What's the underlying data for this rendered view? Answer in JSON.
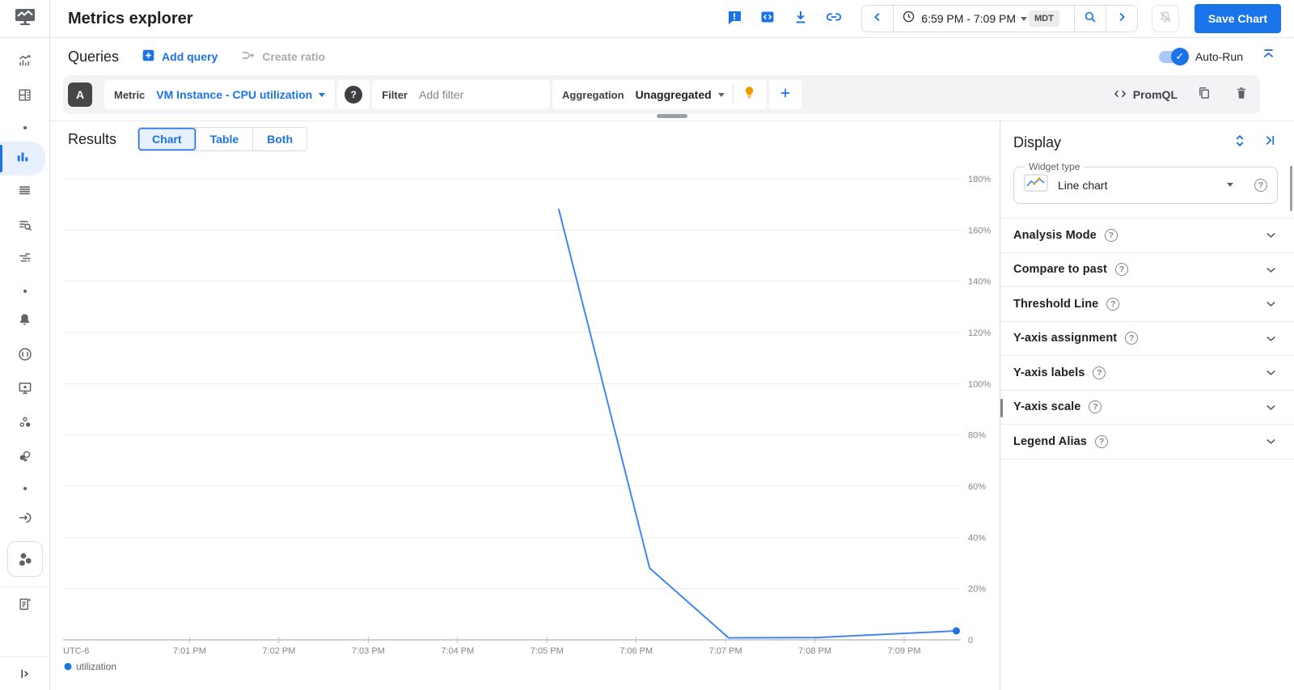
{
  "header": {
    "title": "Metrics explorer",
    "time_range": "6:59 PM - 7:09 PM",
    "timezone_badge": "MDT",
    "save_button": "Save Chart",
    "accent_color": "#1a73e8"
  },
  "queries": {
    "title": "Queries",
    "add_query": "Add query",
    "create_ratio": "Create ratio",
    "auto_run_label": "Auto-Run",
    "auto_run_on": true,
    "query_letter": "A",
    "metric_label": "Metric",
    "metric_value": "VM Instance - CPU utilization",
    "filter_label": "Filter",
    "filter_placeholder": "Add filter",
    "aggregation_label": "Aggregation",
    "aggregation_value": "Unaggregated",
    "promql_label": "PromQL"
  },
  "results": {
    "title": "Results",
    "tabs": [
      {
        "label": "Chart",
        "active": true
      },
      {
        "label": "Table",
        "active": false
      },
      {
        "label": "Both",
        "active": false
      }
    ]
  },
  "display": {
    "title": "Display",
    "widget_type_label": "Widget type",
    "widget_type_value": "Line chart",
    "sections": [
      "Analysis Mode",
      "Compare to past",
      "Threshold Line",
      "Y-axis assignment",
      "Y-axis labels",
      "Y-axis scale",
      "Legend Alias"
    ]
  },
  "icons": {
    "help_glyph": "?",
    "check_glyph": "✓"
  },
  "chart_data": {
    "type": "line",
    "title": "",
    "timezone_label": "UTC-6",
    "grid": true,
    "legend_position": "bottom-left",
    "x_axis": {
      "domain_seconds_after_7pm": [
        -25,
        578
      ],
      "ticks": [
        {
          "label": "7:01 PM",
          "seconds_after_7pm": 60
        },
        {
          "label": "7:02 PM",
          "seconds_after_7pm": 120
        },
        {
          "label": "7:03 PM",
          "seconds_after_7pm": 180
        },
        {
          "label": "7:04 PM",
          "seconds_after_7pm": 240
        },
        {
          "label": "7:05 PM",
          "seconds_after_7pm": 300
        },
        {
          "label": "7:06 PM",
          "seconds_after_7pm": 360
        },
        {
          "label": "7:07 PM",
          "seconds_after_7pm": 420
        },
        {
          "label": "7:08 PM",
          "seconds_after_7pm": 480
        },
        {
          "label": "7:09 PM",
          "seconds_after_7pm": 540
        }
      ]
    },
    "y_axis": {
      "unit": "%",
      "range": [
        0,
        186
      ],
      "ticks": [
        {
          "value": 180,
          "label": "180%"
        },
        {
          "value": 160,
          "label": "160%"
        },
        {
          "value": 140,
          "label": "140%"
        },
        {
          "value": 120,
          "label": "120%"
        },
        {
          "value": 100,
          "label": "100%"
        },
        {
          "value": 80,
          "label": "80%"
        },
        {
          "value": 60,
          "label": "60%"
        },
        {
          "value": 40,
          "label": "40%"
        },
        {
          "value": 20,
          "label": "20%"
        },
        {
          "value": 0,
          "label": "0"
        }
      ]
    },
    "series": [
      {
        "name": "utilization",
        "color": "#4285f4",
        "points": [
          {
            "time": "7:05:08 PM",
            "seconds_after_7pm": 308,
            "value_pct": 168
          },
          {
            "time": "7:06:09 PM",
            "seconds_after_7pm": 369,
            "value_pct": 28
          },
          {
            "time": "7:07:02 PM",
            "seconds_after_7pm": 422,
            "value_pct": 0.8
          },
          {
            "time": "7:08:02 PM",
            "seconds_after_7pm": 482,
            "value_pct": 0.9
          },
          {
            "time": "7:09:35 PM",
            "seconds_after_7pm": 575,
            "value_pct": 3.5
          }
        ]
      }
    ],
    "legend": [
      {
        "name": "utilization",
        "color": "#1a73e8"
      }
    ]
  }
}
